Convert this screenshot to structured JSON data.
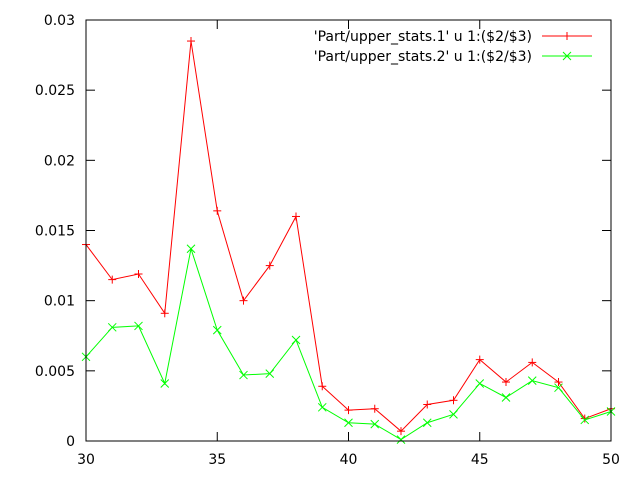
{
  "chart_data": {
    "type": "line",
    "title": "",
    "xlabel": "",
    "ylabel": "",
    "xlim": [
      30,
      50
    ],
    "ylim": [
      0,
      0.03
    ],
    "xticks": [
      30,
      35,
      40,
      45,
      50
    ],
    "xtick_labels": [
      "30",
      "35",
      "40",
      "45",
      "50"
    ],
    "yticks": [
      0,
      0.005,
      0.01,
      0.015,
      0.02,
      0.025,
      0.03
    ],
    "ytick_labels": [
      "0",
      "0.005",
      "0.01",
      "0.015",
      "0.02",
      "0.025",
      "0.03"
    ],
    "grid": false,
    "legend_position": "top-right",
    "x": [
      30,
      31,
      32,
      33,
      34,
      35,
      36,
      37,
      38,
      39,
      40,
      41,
      42,
      43,
      44,
      45,
      46,
      47,
      48,
      49,
      50
    ],
    "series": [
      {
        "name": "'Part/upper_stats.1' u 1:($2/$3)",
        "color": "#ff0000",
        "marker": "plus",
        "values": [
          0.014,
          0.0115,
          0.0119,
          0.0091,
          0.0285,
          0.0164,
          0.01,
          0.0125,
          0.016,
          0.0039,
          0.0022,
          0.0023,
          0.0007,
          0.0026,
          0.0029,
          0.0058,
          0.0042,
          0.0056,
          0.0042,
          0.0016,
          0.0023
        ]
      },
      {
        "name": "'Part/upper_stats.2' u 1:($2/$3)",
        "color": "#00ff00",
        "marker": "cross",
        "values": [
          0.006,
          0.0081,
          0.0082,
          0.0041,
          0.0137,
          0.0079,
          0.0047,
          0.0048,
          0.0072,
          0.0024,
          0.0013,
          0.0012,
          0.0001,
          0.0013,
          0.0019,
          0.0041,
          0.0031,
          0.0043,
          0.0038,
          0.0015,
          0.0021
        ]
      }
    ]
  }
}
